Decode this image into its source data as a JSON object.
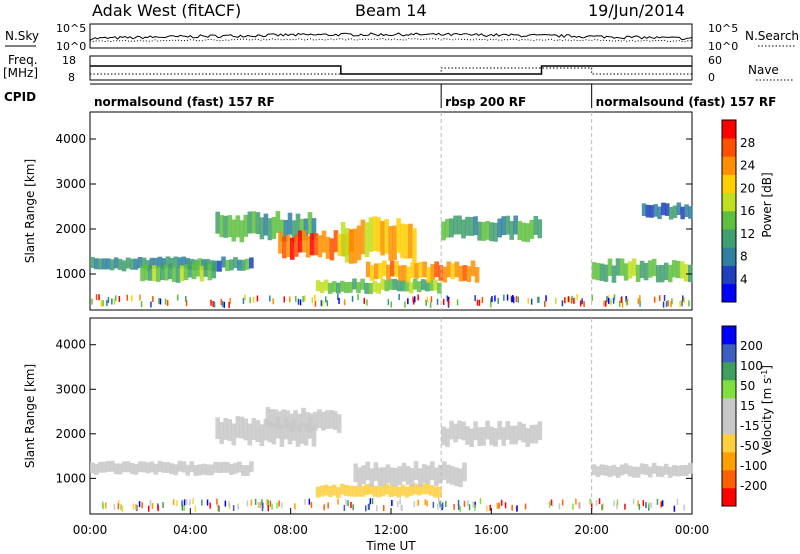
{
  "header": {
    "station": "Adak West (fitACF)",
    "beam": "Beam 14",
    "date": "19/Jun/2014"
  },
  "sky_panel": {
    "left_label": "N.Sky",
    "right_label": "N.Search",
    "left_ticks": [
      "10^5",
      "10^0"
    ],
    "right_ticks": [
      "10^5",
      "10^0"
    ]
  },
  "freq_panel": {
    "left_label_line1": "Freq.",
    "left_label_line2": "[MHz]",
    "right_label": "Nave",
    "left_ticks": [
      "18",
      "8"
    ],
    "right_ticks": [
      "60",
      "0"
    ]
  },
  "cpid": {
    "label": "CPID",
    "segments": [
      {
        "name": "normalsound (fast) 157 RF",
        "start_h": 0,
        "end_h": 14
      },
      {
        "name": "rbsp 200 RF",
        "start_h": 14,
        "end_h": 20
      },
      {
        "name": "normalsound (fast) 157 RF",
        "start_h": 20,
        "end_h": 24
      }
    ]
  },
  "colors": {
    "power_scale": [
      "#0000ff",
      "#1f3fbf",
      "#2f7f9f",
      "#3f9f6f",
      "#5fbf3f",
      "#bfdf1f",
      "#ffcf00",
      "#ff8f00",
      "#ff4f00",
      "#ff0000"
    ],
    "velocity_scale": [
      "#ff0000",
      "#ff5f00",
      "#ff9f00",
      "#ffcf3f",
      "#c8c8c8",
      "#c8c8c8",
      "#7fdf3f",
      "#3f9f5f",
      "#3f5fbf",
      "#0000ff"
    ]
  },
  "chart_data": [
    {
      "type": "heatmap",
      "title": "",
      "xlabel": "",
      "ylabel": "Slant Range [km]",
      "x_range_hours": [
        0,
        24
      ],
      "ylim": [
        200,
        4600
      ],
      "y_ticks": [
        "1000",
        "2000",
        "3000",
        "4000"
      ],
      "colorbar": {
        "label": "Power [dB]",
        "ticks": [
          "4",
          "8",
          "12",
          "16",
          "20",
          "24",
          "28"
        ],
        "range": [
          0,
          32
        ]
      },
      "echo_regions": [
        {
          "t0": 0.0,
          "t1": 6.5,
          "r0": 1050,
          "r1": 1400,
          "value": 10
        },
        {
          "t0": 2.0,
          "t1": 5.0,
          "r0": 800,
          "r1": 1300,
          "value": 14
        },
        {
          "t0": 5.0,
          "t1": 9.0,
          "r0": 1700,
          "r1": 2400,
          "value": 12
        },
        {
          "t0": 7.5,
          "t1": 10.5,
          "r0": 1300,
          "r1": 2000,
          "value": 26
        },
        {
          "t0": 10.0,
          "t1": 13.0,
          "r0": 1200,
          "r1": 2300,
          "value": 22
        },
        {
          "t0": 9.0,
          "t1": 14.0,
          "r0": 550,
          "r1": 900,
          "value": 14
        },
        {
          "t0": 11.0,
          "t1": 15.5,
          "r0": 800,
          "r1": 1300,
          "value": 24
        },
        {
          "t0": 14.0,
          "t1": 18.0,
          "r0": 1700,
          "r1": 2300,
          "value": 12
        },
        {
          "t0": 20.0,
          "t1": 24.0,
          "r0": 800,
          "r1": 1350,
          "value": 14
        },
        {
          "t0": 22.0,
          "t1": 24.0,
          "r0": 2200,
          "r1": 2600,
          "value": 8
        }
      ]
    },
    {
      "type": "heatmap",
      "title": "",
      "xlabel": "Time UT",
      "ylabel": "Slant Range [km]",
      "x_range_hours": [
        0,
        24
      ],
      "ylim": [
        200,
        4600
      ],
      "y_ticks": [
        "1000",
        "2000",
        "3000",
        "4000"
      ],
      "x_ticks": [
        "00:00",
        "04:00",
        "08:00",
        "12:00",
        "16:00",
        "20:00",
        "00:00"
      ],
      "colorbar": {
        "label": "Velocity [m s",
        "label_superscript": "-1",
        "label_close": "]",
        "ticks": [
          "-200",
          "-100",
          "-50",
          "-15",
          "15",
          "50",
          "100",
          "200"
        ],
        "range": [
          -250,
          250
        ]
      },
      "echo_regions": [
        {
          "t0": 0.0,
          "t1": 6.5,
          "r0": 1050,
          "r1": 1400,
          "value": 0
        },
        {
          "t0": 5.0,
          "t1": 9.0,
          "r0": 1700,
          "r1": 2400,
          "value": 0
        },
        {
          "t0": 7.0,
          "t1": 10.0,
          "r0": 2000,
          "r1": 2600,
          "value": -40
        },
        {
          "t0": 9.0,
          "t1": 14.0,
          "r0": 550,
          "r1": 900,
          "value": -60
        },
        {
          "t0": 10.5,
          "t1": 15.0,
          "r0": 800,
          "r1": 1400,
          "value": -40
        },
        {
          "t0": 14.0,
          "t1": 18.0,
          "r0": 1700,
          "r1": 2300,
          "value": 0
        },
        {
          "t0": 20.0,
          "t1": 24.0,
          "r0": 1000,
          "r1": 1350,
          "value": 0
        }
      ]
    }
  ]
}
